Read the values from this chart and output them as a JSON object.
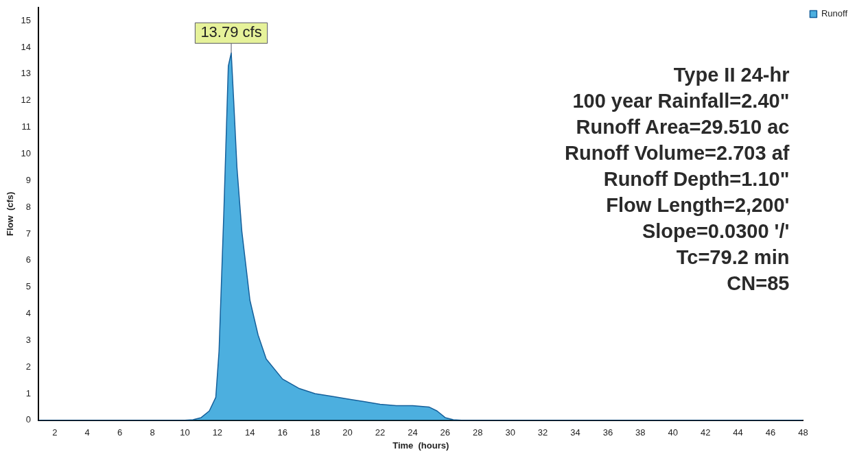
{
  "chart_data": {
    "type": "area",
    "xlabel": "Time  (hours)",
    "ylabel": "Flow  (cfs)",
    "x": [
      1,
      2,
      4,
      6,
      8,
      10,
      10.5,
      11,
      11.5,
      11.9,
      12.1,
      12.4,
      12.67,
      12.85,
      13,
      13.2,
      13.5,
      14,
      14.5,
      15,
      16,
      17,
      18,
      19,
      20,
      21,
      22,
      23,
      24,
      25,
      25.5,
      26,
      26.5,
      27,
      28,
      30,
      35,
      40,
      45,
      48
    ],
    "series": [
      {
        "name": "Runoff",
        "color": "#1f9bd7",
        "values": [
          0,
          0,
          0,
          0,
          0,
          0,
          0.02,
          0.1,
          0.35,
          0.86,
          2.6,
          7.9,
          13.3,
          13.79,
          12,
          9.5,
          7.1,
          4.5,
          3.2,
          2.3,
          1.55,
          1.2,
          1.0,
          0.9,
          0.8,
          0.7,
          0.6,
          0.55,
          0.55,
          0.5,
          0.35,
          0.1,
          0.02,
          0,
          0,
          0,
          0,
          0,
          0,
          0
        ]
      }
    ],
    "xlim": [
      1,
      48
    ],
    "xticks": [
      2,
      4,
      6,
      8,
      10,
      12,
      14,
      16,
      18,
      20,
      22,
      24,
      26,
      28,
      30,
      32,
      34,
      36,
      38,
      40,
      42,
      44,
      46,
      48
    ],
    "ylim": [
      0,
      15.5
    ],
    "yticks": [
      0,
      1,
      2,
      3,
      4,
      5,
      6,
      7,
      8,
      9,
      10,
      11,
      12,
      13,
      14,
      15
    ],
    "grid": false,
    "legend": "top right",
    "marker": "none",
    "line_style": "solid",
    "annotations": [
      {
        "text": "13.79 cfs",
        "x": 12.85,
        "y": 13.79
      },
      "Type II 24-hr",
      "100 year Rainfall=2.40\"",
      "Runoff Area=29.510 ac",
      "Runoff Volume=2.703 af",
      "Runoff Depth=1.10\"",
      "Flow Length=2,200'",
      "Slope=0.0300 '/'",
      "Tc=79.2 min",
      "CN=85"
    ]
  }
}
